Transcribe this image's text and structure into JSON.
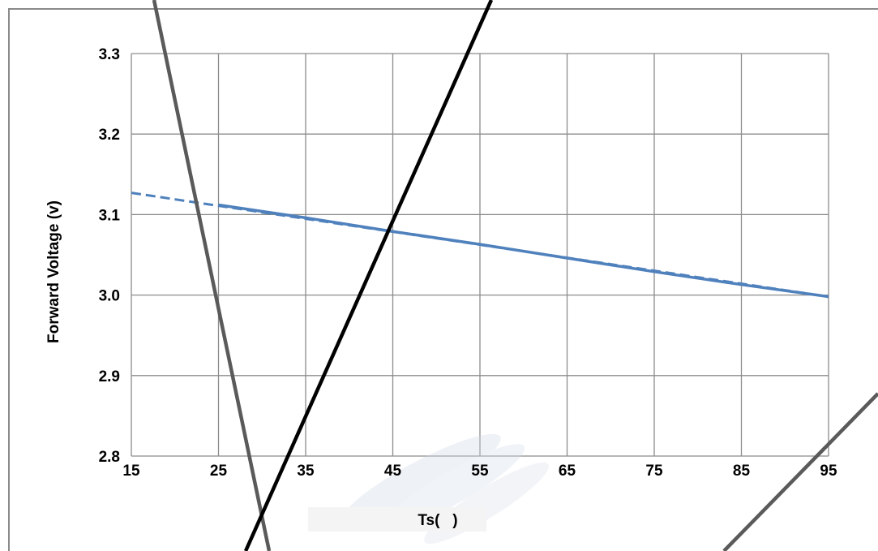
{
  "chart_data": {
    "type": "line",
    "title": "",
    "xlabel": "Ts(   )",
    "ylabel": "Forward Voltage (v)",
    "xlim": [
      15,
      95
    ],
    "ylim": [
      2.8,
      3.3
    ],
    "x_ticks": [
      "15",
      "25",
      "35",
      "45",
      "55",
      "65",
      "75",
      "85",
      "95"
    ],
    "y_ticks": [
      "2.8",
      "2.9",
      "3.0",
      "3.1",
      "3.2",
      "3.3"
    ],
    "grid": true,
    "series": [
      {
        "style": "solid",
        "color": "#4f81bd",
        "x": [
          25,
          35,
          45,
          55,
          65,
          75,
          85,
          95
        ],
        "y": [
          3.112,
          3.096,
          3.079,
          3.063,
          3.046,
          3.029,
          3.013,
          2.998
        ]
      },
      {
        "style": "dashed",
        "color": "#4f81bd",
        "x": [
          15,
          95
        ],
        "y": [
          3.127,
          2.998
        ]
      }
    ]
  }
}
